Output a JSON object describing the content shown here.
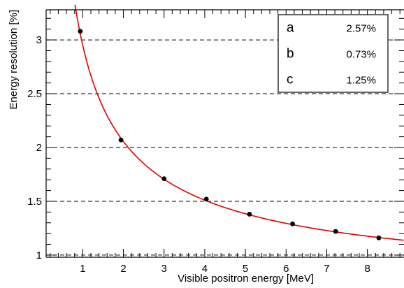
{
  "chart_data": {
    "type": "scatter",
    "title": "",
    "xlabel": "Visible positron energy [MeV]",
    "ylabel": "Energy resolution [%]",
    "xlim": [
      0.1,
      8.9
    ],
    "ylim": [
      0.98,
      3.28
    ],
    "x_ticks": [
      "1",
      "2",
      "3",
      "4",
      "5",
      "6",
      "7",
      "8"
    ],
    "y_ticks": [
      "1",
      "1.5",
      "2",
      "2.5",
      "3"
    ],
    "grid": "horizontal dashed",
    "series": [
      {
        "values": [
          {
            "x": 0.94,
            "y": 3.08
          },
          {
            "x": 1.94,
            "y": 2.07
          },
          {
            "x": 3.0,
            "y": 1.71
          },
          {
            "x": 4.04,
            "y": 1.52
          },
          {
            "x": 5.1,
            "y": 1.38
          },
          {
            "x": 6.16,
            "y": 1.29
          },
          {
            "x": 7.22,
            "y": 1.22
          },
          {
            "x": 8.28,
            "y": 1.16
          }
        ],
        "marker": "circle",
        "color": "#000000"
      }
    ],
    "fit": {
      "color": "#e00000",
      "parameters": [
        {
          "name": "a",
          "value": "2.57%"
        },
        {
          "name": "b",
          "value": "0.73%"
        },
        {
          "name": "c",
          "value": "1.25%"
        }
      ]
    },
    "legend_position": "top-right"
  }
}
